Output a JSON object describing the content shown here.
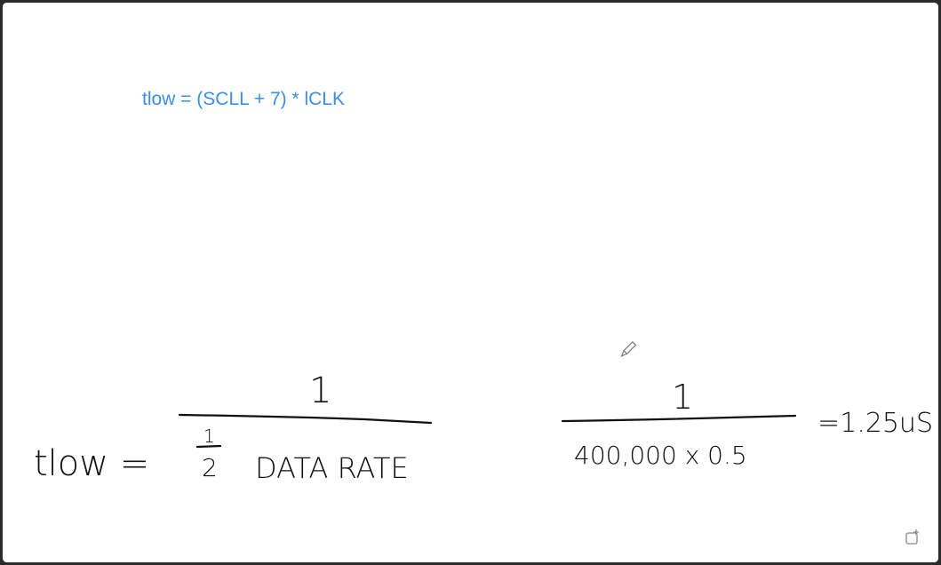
{
  "typed_note": "tlow = (SCLL + 7) * lCLK",
  "handwriting": {
    "lhs": "tlow =",
    "fraction_1": {
      "numerator": "1",
      "half_numerator": "1",
      "half_denominator": "2",
      "denominator": "DATA RATE"
    },
    "fraction_2": {
      "numerator": "1",
      "denominator": "400,000 x 0.5"
    },
    "result": "=1.25uS"
  }
}
